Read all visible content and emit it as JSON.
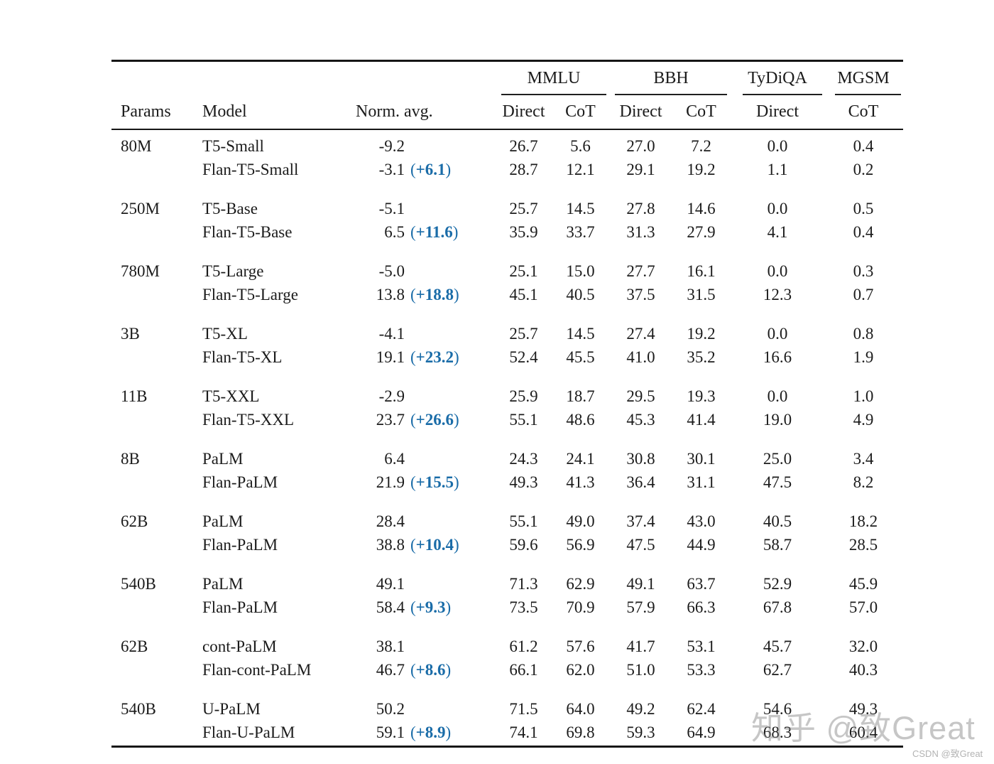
{
  "table": {
    "header": {
      "params": "Params",
      "model": "Model",
      "norm_avg": "Norm. avg.",
      "groups": [
        {
          "label": "MMLU",
          "cols": [
            "Direct",
            "CoT"
          ]
        },
        {
          "label": "BBH",
          "cols": [
            "Direct",
            "CoT"
          ]
        },
        {
          "label": "TyDiQA",
          "cols": [
            "Direct"
          ]
        },
        {
          "label": "MGSM",
          "cols": [
            "CoT"
          ]
        }
      ]
    },
    "groups": [
      {
        "params": "80M",
        "rows": [
          {
            "model": "T5-Small",
            "norm": "-9.2",
            "delta": "",
            "scores": [
              "26.7",
              "5.6",
              "27.0",
              "7.2",
              "0.0",
              "0.4"
            ]
          },
          {
            "model": "Flan-T5-Small",
            "norm": "-3.1",
            "delta": "+6.1",
            "scores": [
              "28.7",
              "12.1",
              "29.1",
              "19.2",
              "1.1",
              "0.2"
            ]
          }
        ]
      },
      {
        "params": "250M",
        "rows": [
          {
            "model": "T5-Base",
            "norm": "-5.1",
            "delta": "",
            "scores": [
              "25.7",
              "14.5",
              "27.8",
              "14.6",
              "0.0",
              "0.5"
            ]
          },
          {
            "model": "Flan-T5-Base",
            "norm": "6.5",
            "delta": "+11.6",
            "scores": [
              "35.9",
              "33.7",
              "31.3",
              "27.9",
              "4.1",
              "0.4"
            ]
          }
        ]
      },
      {
        "params": "780M",
        "rows": [
          {
            "model": "T5-Large",
            "norm": "-5.0",
            "delta": "",
            "scores": [
              "25.1",
              "15.0",
              "27.7",
              "16.1",
              "0.0",
              "0.3"
            ]
          },
          {
            "model": "Flan-T5-Large",
            "norm": "13.8",
            "delta": "+18.8",
            "scores": [
              "45.1",
              "40.5",
              "37.5",
              "31.5",
              "12.3",
              "0.7"
            ]
          }
        ]
      },
      {
        "params": "3B",
        "rows": [
          {
            "model": "T5-XL",
            "norm": "-4.1",
            "delta": "",
            "scores": [
              "25.7",
              "14.5",
              "27.4",
              "19.2",
              "0.0",
              "0.8"
            ]
          },
          {
            "model": "Flan-T5-XL",
            "norm": "19.1",
            "delta": "+23.2",
            "scores": [
              "52.4",
              "45.5",
              "41.0",
              "35.2",
              "16.6",
              "1.9"
            ]
          }
        ]
      },
      {
        "params": "11B",
        "rows": [
          {
            "model": "T5-XXL",
            "norm": "-2.9",
            "delta": "",
            "scores": [
              "25.9",
              "18.7",
              "29.5",
              "19.3",
              "0.0",
              "1.0"
            ]
          },
          {
            "model": "Flan-T5-XXL",
            "norm": "23.7",
            "delta": "+26.6",
            "scores": [
              "55.1",
              "48.6",
              "45.3",
              "41.4",
              "19.0",
              "4.9"
            ]
          }
        ]
      },
      {
        "params": "8B",
        "rows": [
          {
            "model": "PaLM",
            "norm": "6.4",
            "delta": "",
            "scores": [
              "24.3",
              "24.1",
              "30.8",
              "30.1",
              "25.0",
              "3.4"
            ]
          },
          {
            "model": "Flan-PaLM",
            "norm": "21.9",
            "delta": "+15.5",
            "scores": [
              "49.3",
              "41.3",
              "36.4",
              "31.1",
              "47.5",
              "8.2"
            ]
          }
        ]
      },
      {
        "params": "62B",
        "rows": [
          {
            "model": "PaLM",
            "norm": "28.4",
            "delta": "",
            "scores": [
              "55.1",
              "49.0",
              "37.4",
              "43.0",
              "40.5",
              "18.2"
            ]
          },
          {
            "model": "Flan-PaLM",
            "norm": "38.8",
            "delta": "+10.4",
            "scores": [
              "59.6",
              "56.9",
              "47.5",
              "44.9",
              "58.7",
              "28.5"
            ]
          }
        ]
      },
      {
        "params": "540B",
        "rows": [
          {
            "model": "PaLM",
            "norm": "49.1",
            "delta": "",
            "scores": [
              "71.3",
              "62.9",
              "49.1",
              "63.7",
              "52.9",
              "45.9"
            ]
          },
          {
            "model": "Flan-PaLM",
            "norm": "58.4",
            "delta": "+9.3",
            "scores": [
              "73.5",
              "70.9",
              "57.9",
              "66.3",
              "67.8",
              "57.0"
            ]
          }
        ]
      },
      {
        "params": "62B",
        "rows": [
          {
            "model": "cont-PaLM",
            "norm": "38.1",
            "delta": "",
            "scores": [
              "61.2",
              "57.6",
              "41.7",
              "53.1",
              "45.7",
              "32.0"
            ]
          },
          {
            "model": "Flan-cont-PaLM",
            "norm": "46.7",
            "delta": "+8.6",
            "scores": [
              "66.1",
              "62.0",
              "51.0",
              "53.3",
              "62.7",
              "40.3"
            ]
          }
        ]
      },
      {
        "params": "540B",
        "rows": [
          {
            "model": "U-PaLM",
            "norm": "50.2",
            "delta": "",
            "scores": [
              "71.5",
              "64.0",
              "49.2",
              "62.4",
              "54.6",
              "49.3"
            ]
          },
          {
            "model": "Flan-U-PaLM",
            "norm": "59.1",
            "delta": "+8.9",
            "scores": [
              "74.1",
              "69.8",
              "59.3",
              "64.9",
              "68.3",
              "60.4"
            ]
          }
        ]
      }
    ]
  },
  "watermarks": {
    "zhihu": "知乎 @致Great",
    "csdn": "CSDN @致Great"
  },
  "colors": {
    "delta_blue": "#1a6ca8",
    "rule_black": "#161616",
    "watermark_gray": "rgba(128,128,128,0.45)",
    "csdn_gray": "#b3b3b3"
  }
}
